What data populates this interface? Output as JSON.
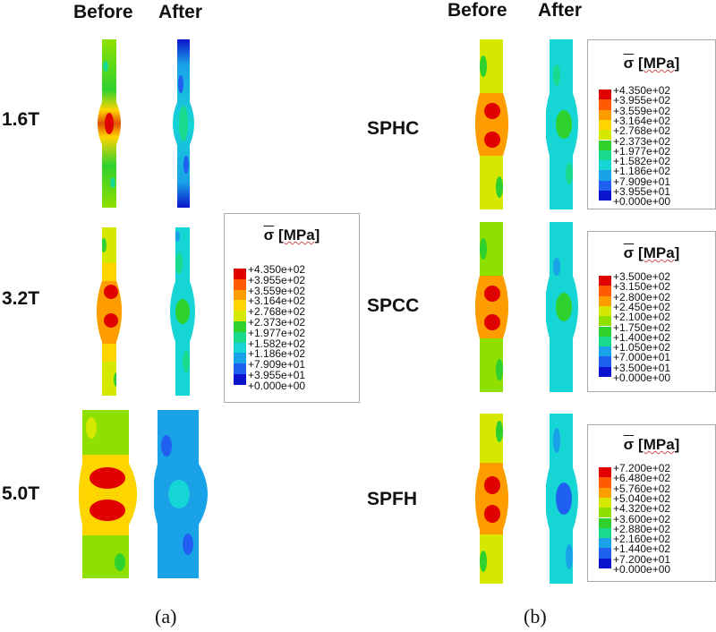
{
  "panel_a": {
    "headers": {
      "before": "Before",
      "after": "After"
    },
    "rows": [
      "1.6T",
      "3.2T",
      "5.0T"
    ],
    "caption": "(a)",
    "legend": {
      "symbol": "σ",
      "unit": "[MPa]",
      "values": [
        "+4.350e+02",
        "+3.955e+02",
        "+3.559e+02",
        "+3.164e+02",
        "+2.768e+02",
        "+2.373e+02",
        "+1.977e+02",
        "+1.582e+02",
        "+1.186e+02",
        "+7.909e+01",
        "+3.955e+01",
        "+0.000e+00"
      ]
    }
  },
  "panel_b": {
    "headers": {
      "before": "Before",
      "after": "After"
    },
    "rows": [
      "SPHC",
      "SPCC",
      "SPFH"
    ],
    "caption": "(b)",
    "legends": [
      {
        "symbol": "σ",
        "unit": "[MPa]",
        "values": [
          "+4.350e+02",
          "+3.955e+02",
          "+3.559e+02",
          "+3.164e+02",
          "+2.768e+02",
          "+2.373e+02",
          "+1.977e+02",
          "+1.582e+02",
          "+1.186e+02",
          "+7.909e+01",
          "+3.955e+01",
          "+0.000e+00"
        ]
      },
      {
        "symbol": "σ",
        "unit": "[MPa]",
        "values": [
          "+3.500e+02",
          "+3.150e+02",
          "+2.800e+02",
          "+2.450e+02",
          "+2.100e+02",
          "+1.750e+02",
          "+1.400e+02",
          "+1.050e+02",
          "+7.000e+01",
          "+3.500e+01",
          "+0.000e+00"
        ]
      },
      {
        "symbol": "σ",
        "unit": "[MPa]",
        "values": [
          "+7.200e+02",
          "+6.480e+02",
          "+5.760e+02",
          "+5.040e+02",
          "+4.320e+02",
          "+3.600e+02",
          "+2.880e+02",
          "+2.160e+02",
          "+1.440e+02",
          "+7.200e+01",
          "+0.000e+00"
        ]
      }
    ]
  },
  "colormap": [
    "#e00000",
    "#ff5a00",
    "#ff9c00",
    "#ffd500",
    "#d4e800",
    "#8fe000",
    "#2fd12f",
    "#19d98c",
    "#15d5d5",
    "#1aa2e8",
    "#2060f0",
    "#0a14cc"
  ]
}
